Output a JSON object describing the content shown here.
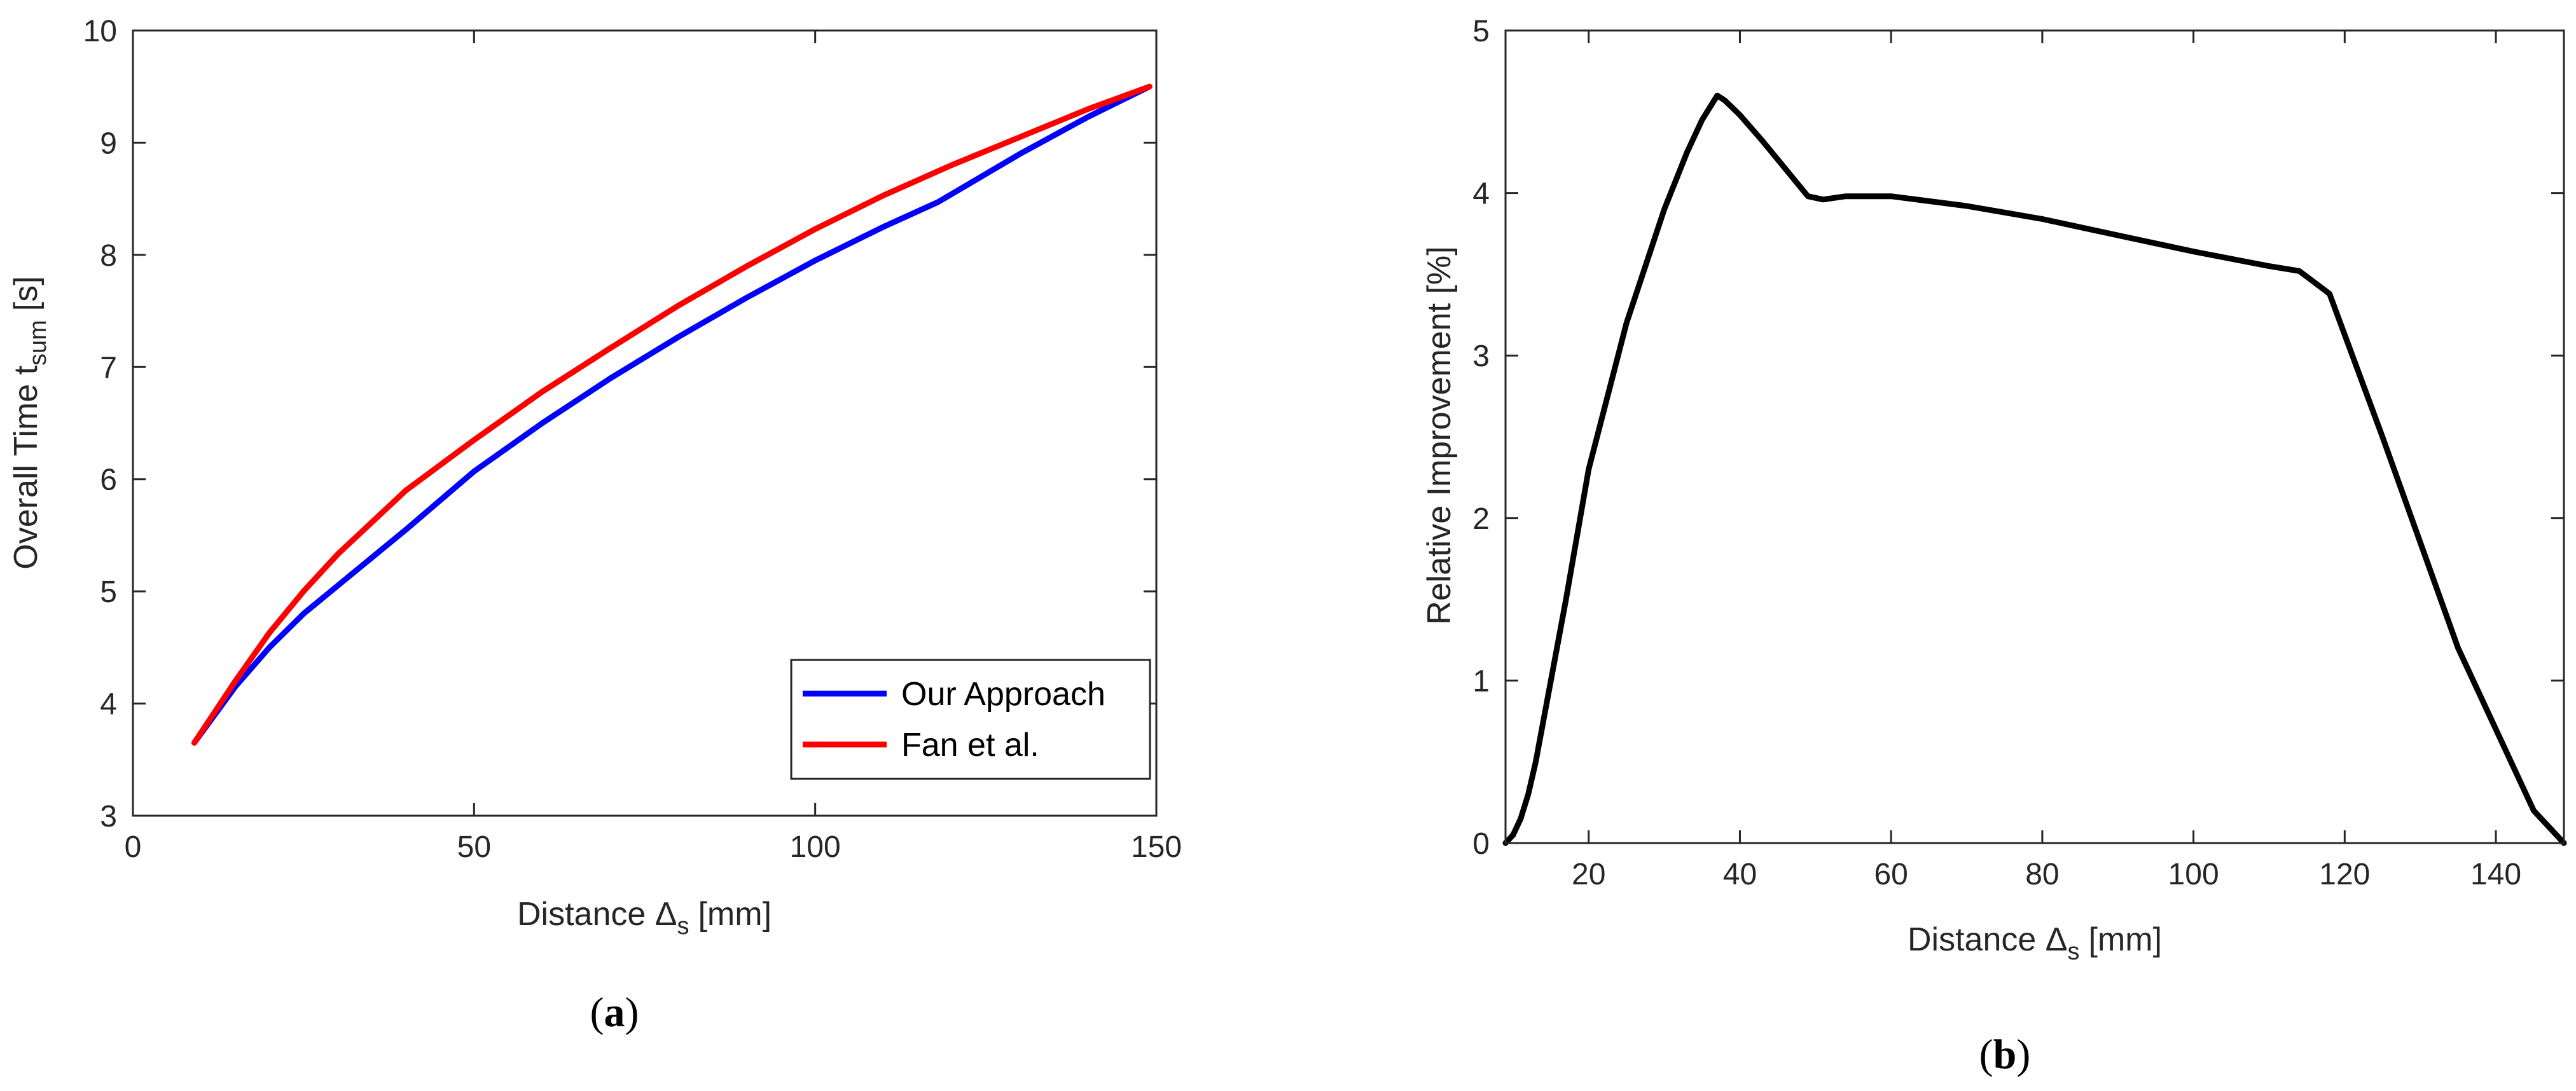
{
  "chart_data": [
    {
      "type": "line",
      "caption": "a",
      "xlabel": "Distance Δ",
      "xlabel_sub": "s",
      "xlabel_unit": "[mm]",
      "ylabel": "Overall Time t",
      "ylabel_sub": "sum",
      "ylabel_unit": "[s]",
      "xlim": [
        0,
        150
      ],
      "ylim": [
        3,
        10
      ],
      "xticks": [
        0,
        50,
        100,
        150
      ],
      "yticks": [
        3,
        4,
        5,
        6,
        7,
        8,
        9,
        10
      ],
      "grid": false,
      "legend_position": "bottom-right",
      "series": [
        {
          "name": "Our Approach",
          "color": "#0000ff",
          "x": [
            9,
            15,
            20,
            25,
            30,
            40,
            50,
            60,
            70,
            80,
            90,
            100,
            110,
            118,
            130,
            140,
            149
          ],
          "y": [
            3.65,
            4.15,
            4.5,
            4.8,
            5.05,
            5.55,
            6.07,
            6.5,
            6.9,
            7.27,
            7.62,
            7.95,
            8.25,
            8.47,
            8.9,
            9.23,
            9.5
          ]
        },
        {
          "name": "Fan et al.",
          "color": "#ff0000",
          "x": [
            9,
            15,
            20,
            25,
            30,
            40,
            50,
            60,
            70,
            80,
            90,
            100,
            110,
            120,
            130,
            140,
            149
          ],
          "y": [
            3.65,
            4.2,
            4.63,
            5.0,
            5.33,
            5.9,
            6.35,
            6.78,
            7.17,
            7.55,
            7.9,
            8.23,
            8.53,
            8.8,
            9.05,
            9.3,
            9.5
          ]
        }
      ]
    },
    {
      "type": "line",
      "caption": "b",
      "xlabel": "Distance Δ",
      "xlabel_sub": "s",
      "xlabel_unit": "[mm]",
      "ylabel": "Relative Improvement [%]",
      "xlim": [
        9,
        149
      ],
      "ylim": [
        0,
        5
      ],
      "xticks": [
        20,
        40,
        60,
        80,
        100,
        120,
        140
      ],
      "yticks": [
        0,
        1,
        2,
        3,
        4,
        5
      ],
      "grid": false,
      "series": [
        {
          "name": "Relative Improvement",
          "color": "#000000",
          "x": [
            9,
            10,
            11,
            12,
            13,
            15,
            17,
            20,
            25,
            30,
            33,
            35,
            37,
            38,
            40,
            43,
            46,
            49,
            51,
            54,
            57,
            60,
            70,
            80,
            90,
            100,
            110,
            114,
            116,
            118,
            125,
            135,
            145,
            149
          ],
          "y": [
            0,
            0.05,
            0.15,
            0.3,
            0.5,
            1.0,
            1.5,
            2.3,
            3.2,
            3.9,
            4.25,
            4.45,
            4.6,
            4.57,
            4.48,
            4.32,
            4.15,
            3.98,
            3.96,
            3.98,
            3.98,
            3.98,
            3.92,
            3.84,
            3.74,
            3.64,
            3.55,
            3.52,
            3.45,
            3.38,
            2.5,
            1.2,
            0.2,
            0
          ]
        }
      ]
    }
  ]
}
